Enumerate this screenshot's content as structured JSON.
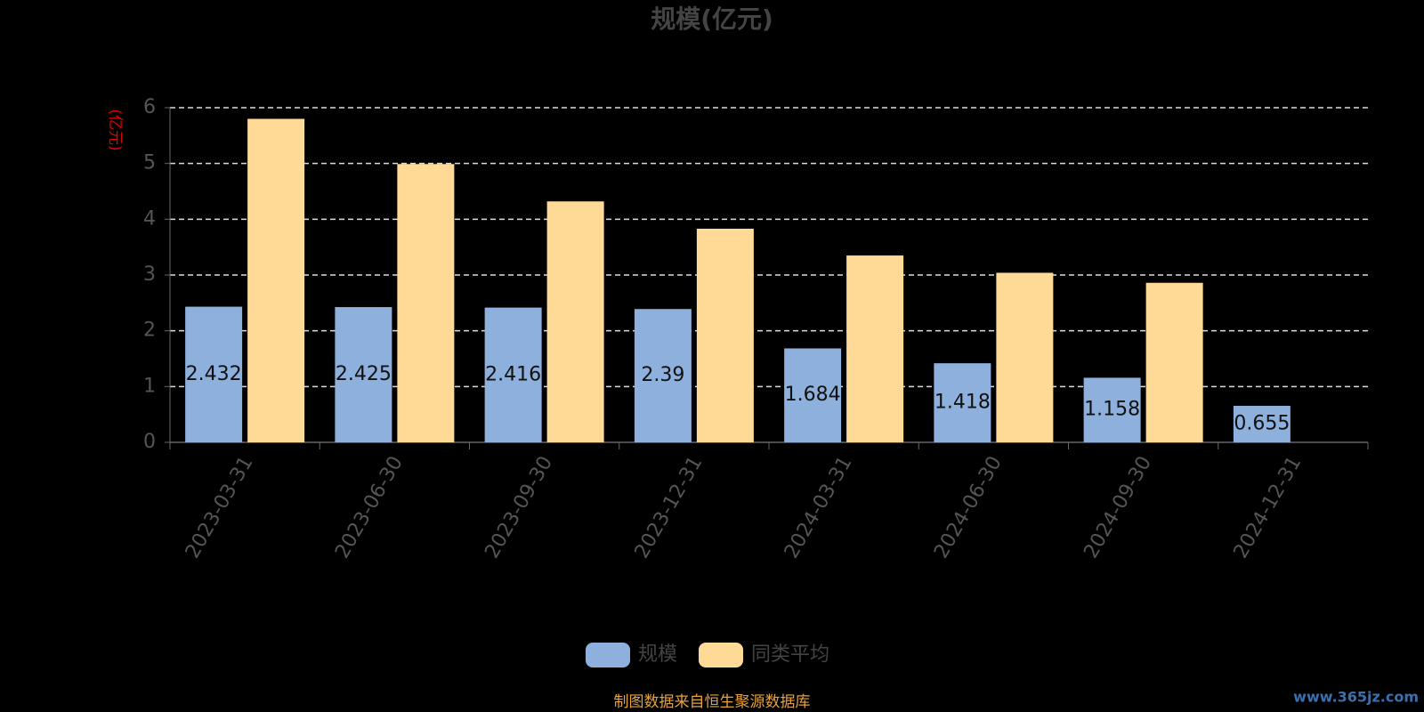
{
  "chart_data": {
    "type": "bar",
    "title": "规模(亿元)",
    "y_label": "(亿元)",
    "categories": [
      "2023-03-31",
      "2023-06-30",
      "2023-09-30",
      "2023-12-31",
      "2024-03-31",
      "2024-06-30",
      "2024-09-30",
      "2024-12-31"
    ],
    "series": [
      {
        "name": "规模",
        "color": "#8eb0dd",
        "values": [
          2.432,
          2.425,
          2.416,
          2.39,
          1.684,
          1.418,
          1.158,
          0.655
        ]
      },
      {
        "name": "同类平均",
        "color": "#ffd996",
        "values": [
          5.8,
          4.99,
          4.32,
          3.83,
          3.35,
          3.04,
          2.86,
          null
        ]
      }
    ],
    "ylim": [
      0,
      6
    ],
    "yticks": [
      0,
      1,
      2,
      3,
      4,
      5,
      6
    ],
    "grid": true,
    "source": "制图数据来自恒生聚源数据库",
    "watermark": "www.365jz.com"
  }
}
